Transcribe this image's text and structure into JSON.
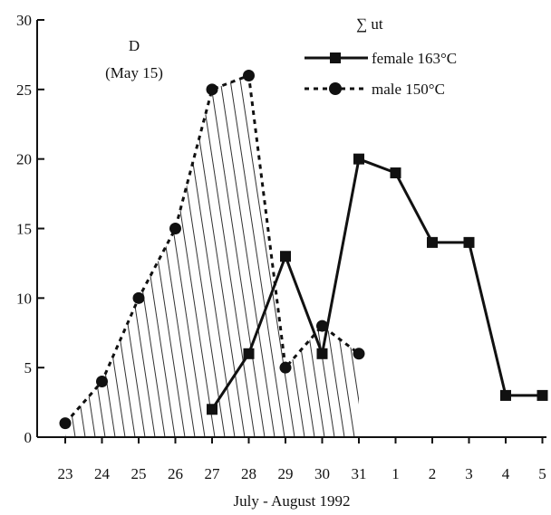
{
  "chart_data": {
    "type": "line",
    "categories": [
      "23",
      "24",
      "25",
      "26",
      "27",
      "28",
      "29",
      "30",
      "31",
      "1",
      "2",
      "3",
      "4",
      "5"
    ],
    "xlabel": "July - August 1992",
    "ylabel": "",
    "ylim": [
      0,
      30
    ],
    "yticks": [
      0,
      5,
      10,
      15,
      20,
      25,
      30
    ],
    "annotation": [
      "D",
      "(May 15)"
    ],
    "legend_title": "∑ ut",
    "legend_position": "top-right",
    "grid": false,
    "series": [
      {
        "name": "female 163°C",
        "style": "solid",
        "marker": "square",
        "points": [
          {
            "x": "27",
            "y": 2
          },
          {
            "x": "28",
            "y": 6
          },
          {
            "x": "29",
            "y": 13
          },
          {
            "x": "30",
            "y": 6
          },
          {
            "x": "31",
            "y": 20
          },
          {
            "x": "1",
            "y": 19
          },
          {
            "x": "2",
            "y": 14
          },
          {
            "x": "3",
            "y": 14
          },
          {
            "x": "4",
            "y": 3
          },
          {
            "x": "5",
            "y": 3
          }
        ]
      },
      {
        "name": "male 150°C",
        "style": "dotted",
        "marker": "circle",
        "shaded": true,
        "points": [
          {
            "x": "23",
            "y": 1
          },
          {
            "x": "24",
            "y": 4
          },
          {
            "x": "25",
            "y": 10
          },
          {
            "x": "26",
            "y": 15
          },
          {
            "x": "27",
            "y": 25
          },
          {
            "x": "28",
            "y": 26
          },
          {
            "x": "29",
            "y": 5
          },
          {
            "x": "30",
            "y": 8
          },
          {
            "x": "31",
            "y": 6
          }
        ]
      }
    ]
  }
}
